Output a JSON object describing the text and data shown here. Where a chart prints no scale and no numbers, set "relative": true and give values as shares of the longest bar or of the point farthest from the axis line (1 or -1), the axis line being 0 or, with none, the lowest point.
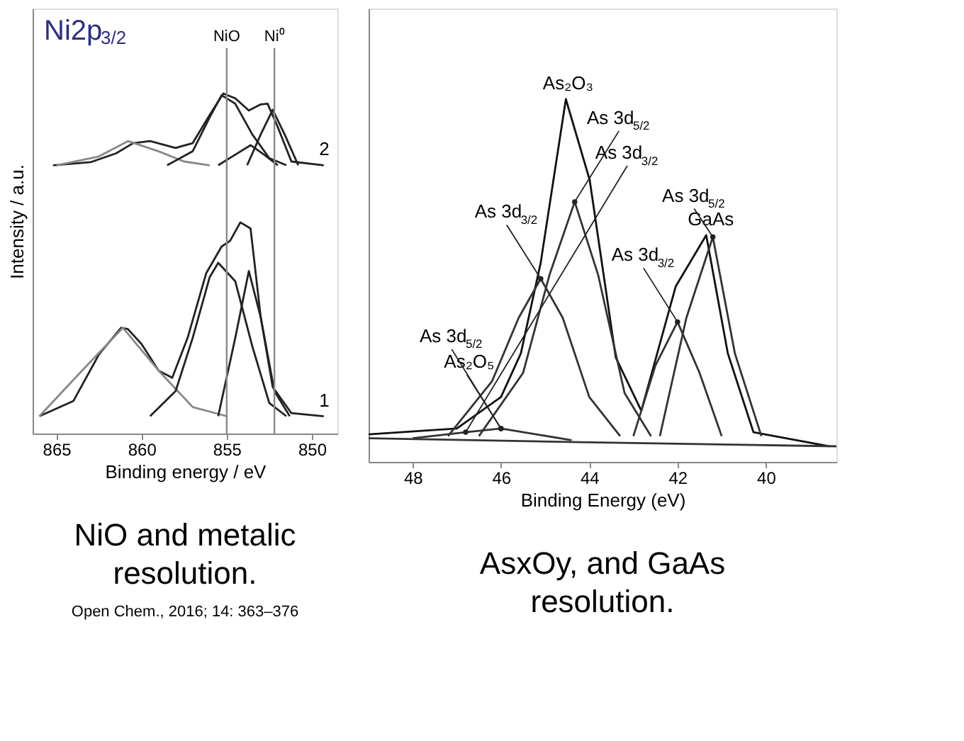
{
  "chart_data": [
    {
      "type": "line",
      "relative": true,
      "title": "Ni2p$_{3/2}$",
      "xlabel": "Binding energy / eV",
      "ylabel": "Intensity / a.u.",
      "xlim": [
        866.4,
        848.5
      ],
      "xticks": [
        865,
        860,
        855,
        850
      ],
      "tick_labels": "x",
      "grid": false,
      "line_style": "solid",
      "series": [
        {
          "color": "#222222",
          "x": [
            865.2,
            863,
            861.5,
            860.5,
            859.5,
            858,
            857,
            856,
            855.2,
            854.5,
            853.7,
            853,
            852.6,
            852,
            851.2,
            849.3
          ],
          "values": [
            0.789,
            0.798,
            0.824,
            0.854,
            0.86,
            0.84,
            0.854,
            0.937,
            1.0,
            0.986,
            0.95,
            0.968,
            0.97,
            0.901,
            0.8,
            0.789
          ]
        },
        {
          "color": "#888888",
          "x": [
            865,
            862.5,
            860.8,
            859,
            857.5,
            856
          ],
          "values": [
            0.789,
            0.815,
            0.86,
            0.83,
            0.8,
            0.789
          ]
        },
        {
          "color": "#222222",
          "x": [
            858.5,
            857,
            856,
            855.3,
            854.5,
            853.5,
            852.5,
            851.5
          ],
          "values": [
            0.789,
            0.83,
            0.93,
            0.995,
            0.97,
            0.88,
            0.81,
            0.789
          ]
        },
        {
          "color": "#222222",
          "x": [
            855.5,
            854.5,
            853.6,
            852.8,
            852
          ],
          "values": [
            0.789,
            0.82,
            0.848,
            0.82,
            0.789
          ]
        },
        {
          "color": "#222222",
          "x": [
            853.8,
            853,
            852.3,
            851.6,
            850.8
          ],
          "values": [
            0.789,
            0.88,
            0.952,
            0.88,
            0.789
          ]
        },
        {
          "color": "#222222",
          "x": [
            866,
            864,
            862.5,
            861.2,
            860.8,
            860,
            859,
            858.2,
            857.3,
            856.2,
            855.3,
            854.8,
            854.2,
            853.6,
            853,
            852.3,
            851.2,
            849.3
          ],
          "values": [
            0.051,
            0.096,
            0.233,
            0.311,
            0.307,
            0.263,
            0.185,
            0.164,
            0.281,
            0.472,
            0.55,
            0.567,
            0.621,
            0.603,
            0.341,
            0.137,
            0.06,
            0.051
          ]
        },
        {
          "color": "#888888",
          "x": [
            866,
            863.5,
            861.1,
            859,
            857,
            855
          ],
          "values": [
            0.051,
            0.185,
            0.311,
            0.185,
            0.078,
            0.051
          ]
        },
        {
          "color": "#222222",
          "x": [
            859.5,
            858,
            857,
            856,
            855.5,
            854.5,
            853.5,
            852.5,
            851.5
          ],
          "values": [
            0.051,
            0.125,
            0.281,
            0.46,
            0.502,
            0.448,
            0.257,
            0.09,
            0.051
          ]
        },
        {
          "color": "#222222",
          "x": [
            855.5,
            854.5,
            853.7,
            853,
            852.2,
            851.3
          ],
          "values": [
            0.051,
            0.281,
            0.478,
            0.341,
            0.125,
            0.051
          ]
        }
      ],
      "ref_lines": [
        {
          "axis": "x",
          "value": 855,
          "label": "NiO",
          "color": "#888888"
        },
        {
          "axis": "x",
          "value": 852.2,
          "label": "Ni⁰",
          "color": "#888888"
        }
      ],
      "annotations": [
        {
          "text": "2",
          "x": 849.3,
          "y": 0.789
        },
        {
          "text": "1",
          "x": 849.3,
          "y": 0.051
        },
        "NiO and metalic resolution.",
        "Open Chem., 2016; 14: 363–376"
      ]
    },
    {
      "type": "line",
      "relative": true,
      "xlabel": "Binding Energy (eV)",
      "xlim": [
        49,
        38.4
      ],
      "xticks": [
        48,
        46,
        44,
        42,
        40
      ],
      "tick_labels": "x",
      "grid": false,
      "line_style": "solid",
      "series": [
        {
          "color": "#111111",
          "x": [
            49,
            47,
            46,
            45.55,
            45.1,
            44.53,
            43.99,
            43.4,
            42.82,
            42.04,
            41.35,
            40.86,
            40.28,
            38.57
          ],
          "values": [
            0.076,
            0.092,
            0.179,
            0.299,
            0.549,
            1.0,
            0.777,
            0.288,
            0.141,
            0.484,
            0.625,
            0.299,
            0.082,
            0.043
          ]
        },
        {
          "color": "#333333",
          "x": [
            46.5,
            45.5,
            44.9,
            44.33,
            43.8,
            43.2,
            42.6
          ],
          "values": [
            0.071,
            0.245,
            0.516,
            0.717,
            0.516,
            0.19,
            0.071
          ]
        },
        {
          "color": "#333333",
          "x": [
            47.2,
            46.2,
            45.6,
            45.1,
            44.6,
            44.0,
            43.3
          ],
          "values": [
            0.071,
            0.223,
            0.397,
            0.505,
            0.397,
            0.179,
            0.071
          ]
        },
        {
          "color": "#333333",
          "x": [
            42.4,
            41.8,
            41.2,
            40.7,
            40.1
          ],
          "values": [
            0.071,
            0.397,
            0.62,
            0.299,
            0.071
          ]
        },
        {
          "color": "#333333",
          "x": [
            43.0,
            42.5,
            42.0,
            41.5,
            41.0
          ],
          "values": [
            0.071,
            0.266,
            0.386,
            0.245,
            0.071
          ]
        },
        {
          "color": "#333333",
          "x": [
            48,
            46.8,
            46.0,
            45.2,
            44.4
          ],
          "values": [
            0.065,
            0.082,
            0.092,
            0.076,
            0.06
          ]
        },
        {
          "color": "#333333",
          "x": [
            49,
            44,
            38.4
          ],
          "values": [
            0.065,
            0.054,
            0.043
          ]
        }
      ],
      "annotations": [
        {
          "text": "As₂O₃",
          "x": 44.53,
          "y": 1.0
        },
        {
          "text": "As 3d$_{5/2}$",
          "x": 44.33,
          "y": 0.717
        },
        {
          "text": "As 3d$_{3/2}$",
          "x": 45.1,
          "y": 0.505
        },
        {
          "text": "GaAs",
          "x": 41.35,
          "y": 0.625
        },
        {
          "text": "As 3d$_{5/2}$",
          "x": 41.2,
          "y": 0.62
        },
        {
          "text": "As 3d$_{3/2}$",
          "x": 42.0,
          "y": 0.386
        },
        {
          "text": "As₂O₅",
          "x": 46.0,
          "y": 0.092
        },
        {
          "text": "As 3d$_{5/2}$",
          "x": 46.0,
          "y": 0.092
        },
        {
          "text": "As 3d$_{3/2}$",
          "x": 46.8,
          "y": 0.082
        },
        "AsxOy,  and GaAs resolution."
      ]
    }
  ]
}
